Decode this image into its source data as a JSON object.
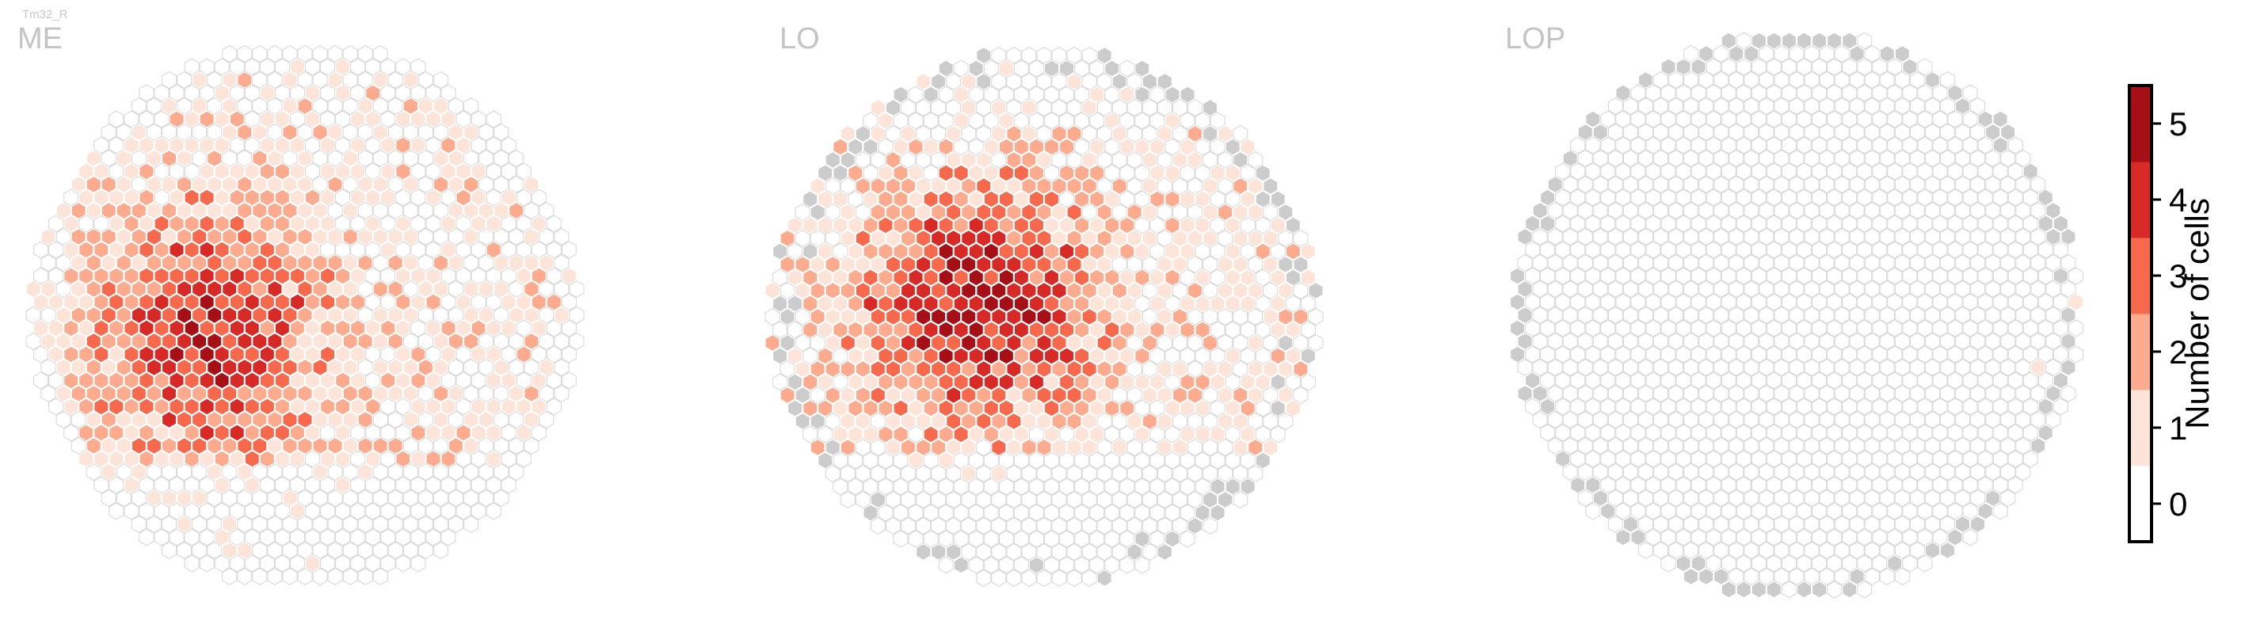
{
  "cell_type_label": "Tm32_R",
  "chart_data": [
    {
      "type": "heatmap",
      "layout": "hexagonal",
      "title": "ME",
      "value_unit": "Number of cells",
      "distribution_description": "Circular hex field; highest counts (4-5) concentrated left-of-centre; right and lower edges mostly 0-2.",
      "peak_value": 5,
      "typical_value_range": [
        0,
        5
      ],
      "gray_cells_present": false
    },
    {
      "type": "heatmap",
      "layout": "hexagonal",
      "title": "LO",
      "value_unit": "Number of cells",
      "distribution_description": "Circular hex field; dense 4-5 cluster in upper-left to centre; gray (no data) cells scattered along the boundary.",
      "peak_value": 5,
      "typical_value_range": [
        0,
        5
      ],
      "gray_cells_present": true
    },
    {
      "type": "heatmap",
      "layout": "hexagonal",
      "title": "LOP",
      "value_unit": "Number of cells",
      "distribution_description": "Circular hex field almost entirely 0; a ring of gray boundary cells; two isolated cells with value 1 near the right side.",
      "peak_value": 1,
      "typical_value_range": [
        0,
        1
      ],
      "gray_cells_present": true
    }
  ],
  "colorbar": {
    "label": "Number of cells",
    "ticks": [
      "0",
      "1",
      "2",
      "3",
      "4",
      "5"
    ],
    "colors": [
      "#ffffff",
      "#fde4d8",
      "#fcab8f",
      "#f6694d",
      "#d72a26",
      "#a50f15"
    ],
    "gray_color": "#cccccc",
    "empty_edge_color": "#dcdcdc"
  }
}
